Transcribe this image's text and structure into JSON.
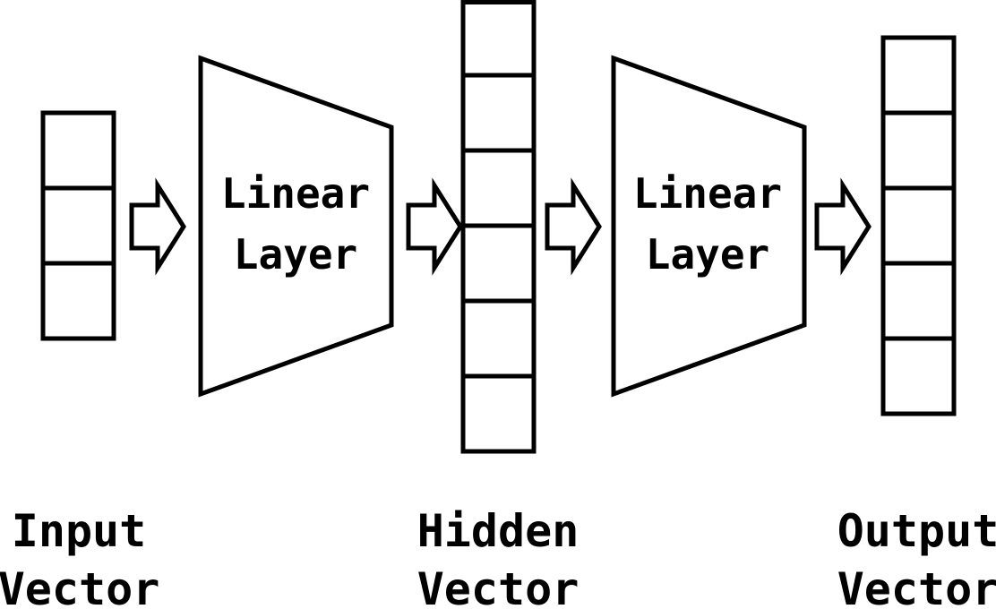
{
  "diagram": {
    "input_vector": {
      "cells": 3,
      "label_line1": "Input",
      "label_line2": "Vector"
    },
    "layer1": {
      "label_line1": "Linear",
      "label_line2": "Layer"
    },
    "hidden_vector": {
      "cells": 6,
      "label_line1": "Hidden",
      "label_line2": "Vector"
    },
    "layer2": {
      "label_line1": "Linear",
      "label_line2": "Layer"
    },
    "output_vector": {
      "cells": 5,
      "label_line1": "Output",
      "label_line2": "Vector"
    },
    "stroke_color": "#000000",
    "fill_color": "#ffffff"
  }
}
